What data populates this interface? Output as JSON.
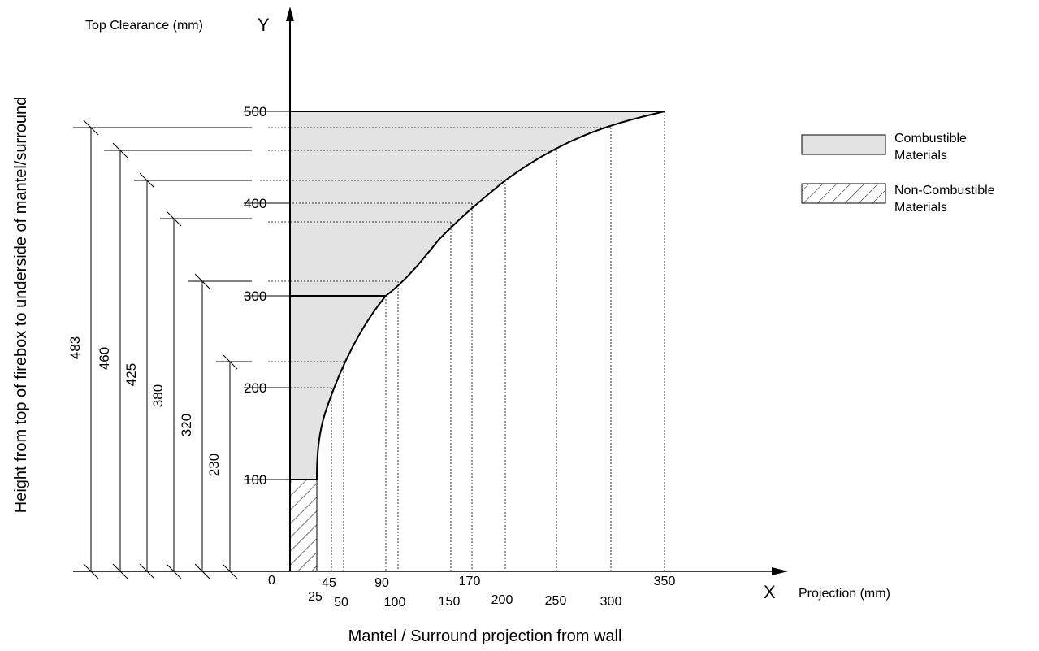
{
  "diagram": {
    "y_axis_title": "Top Clearance (mm)",
    "y_axis_letter": "Y",
    "x_axis_title": "Projection (mm)",
    "x_axis_letter": "X",
    "vertical_caption": "Height from top of firebox to underside of mantel/surround",
    "bottom_caption": "Mantel / Surround projection from wall",
    "origin_label": "0",
    "y_ticks": [
      "100",
      "200",
      "300",
      "400",
      "500"
    ],
    "x_ticks_upper": [
      "45",
      "90",
      "170",
      "350"
    ],
    "x_ticks_lower": [
      "25",
      "50",
      "100",
      "150",
      "200",
      "250",
      "300"
    ],
    "height_dimensions": [
      "483",
      "460",
      "425",
      "380",
      "320",
      "230"
    ]
  },
  "legend": {
    "combustible": {
      "line1": "Combustible",
      "line2": "Materials",
      "color": "#e3e3e3"
    },
    "non_combustible": {
      "line1": "Non-Combustible",
      "line2": "Materials"
    }
  },
  "colors": {
    "ink": "#000000",
    "fill": "#e3e3e3"
  }
}
